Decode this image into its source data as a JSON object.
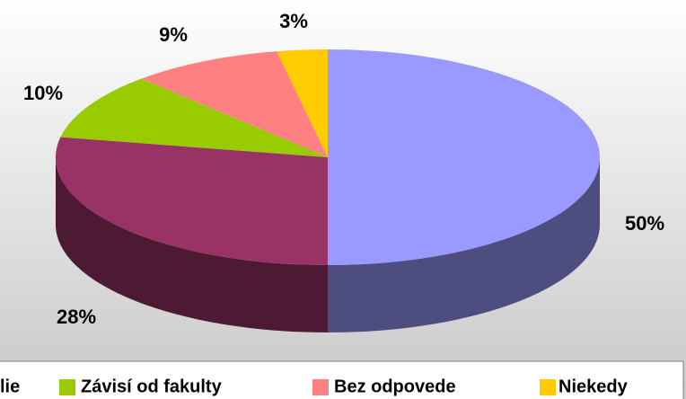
{
  "chart_data": {
    "type": "pie3d",
    "values": [
      50,
      28,
      10,
      9,
      3
    ],
    "value_labels": [
      "50%",
      "28%",
      "10%",
      "9%",
      "3%"
    ],
    "series": [
      {
        "color": "#9999ff",
        "values": [
          50
        ]
      },
      {
        "name": "lie",
        "color": "#993366",
        "values": [
          28
        ]
      },
      {
        "name": "Závisí od fakulty",
        "color": "#99cc00",
        "values": [
          10
        ]
      },
      {
        "name": "Bez odpovede",
        "color": "#ff8080",
        "values": [
          9
        ]
      },
      {
        "name": "Niekedy",
        "color": "#ffcc00",
        "values": [
          3
        ]
      }
    ],
    "legend": "bottom"
  }
}
